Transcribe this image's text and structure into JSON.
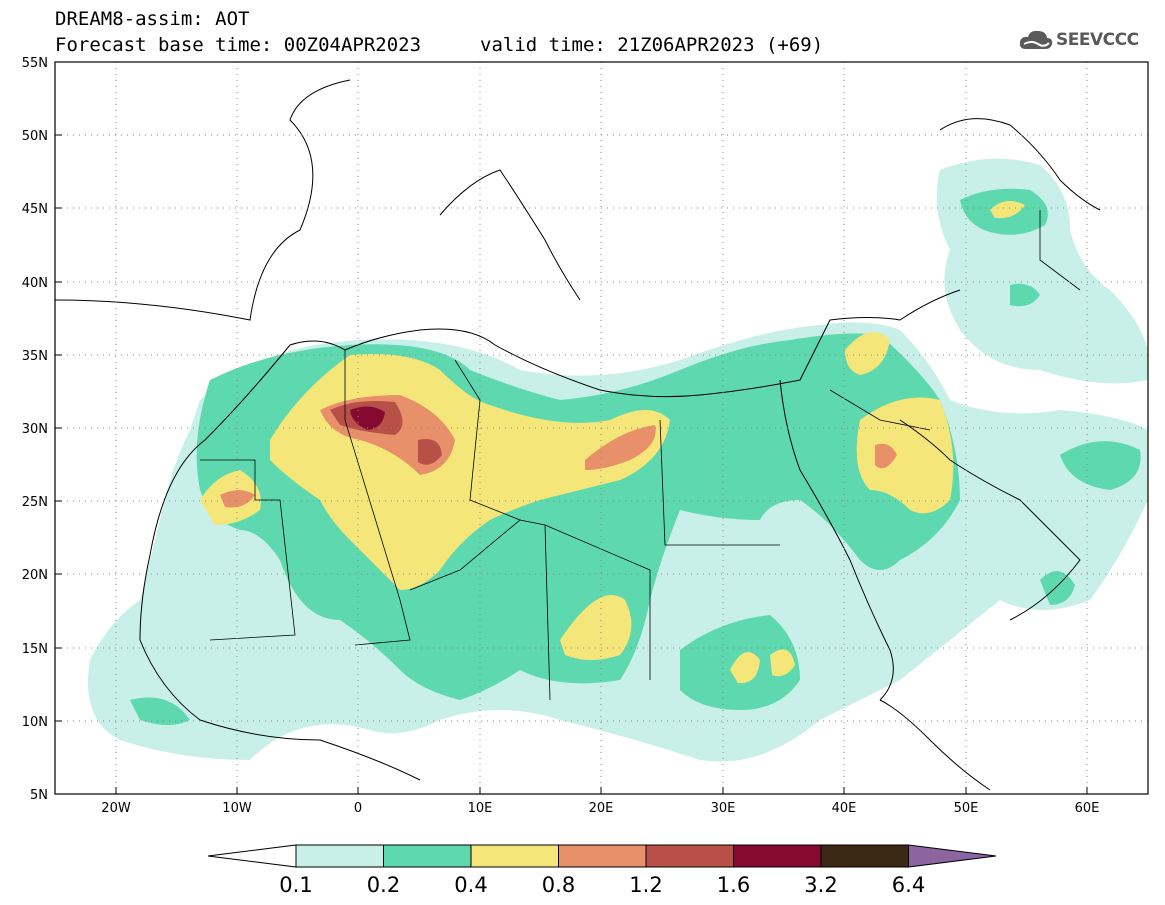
{
  "header": {
    "title_line1": "DREAM8-assim: AOT",
    "title_line2": "Forecast base time: 00Z04APR2023",
    "valid_time": "valid time: 21Z06APR2023 (+69)",
    "logo_text": "SEEVCCC",
    "logo_icon": "cloud-icon"
  },
  "map": {
    "lat_labels": [
      "55N",
      "50N",
      "45N",
      "40N",
      "35N",
      "30N",
      "25N",
      "20N",
      "15N",
      "10N",
      "5N"
    ],
    "lon_labels": [
      "20W",
      "10W",
      "0",
      "10E",
      "20E",
      "30E",
      "40E",
      "50E",
      "60E"
    ],
    "lat_values": [
      55,
      50,
      45,
      40,
      35,
      30,
      25,
      20,
      15,
      10,
      5
    ],
    "lon_values": [
      -20,
      -10,
      0,
      10,
      20,
      30,
      40,
      50,
      60
    ],
    "lon_range": [
      -25,
      65
    ],
    "lat_range": [
      5,
      55
    ]
  },
  "colorbar": {
    "levels": [
      "0.1",
      "0.2",
      "0.4",
      "0.8",
      "1.2",
      "1.6",
      "3.2",
      "6.4"
    ],
    "colors": [
      "#c8f0e8",
      "#5ed8ae",
      "#f5e67a",
      "#e8906a",
      "#b85048",
      "#850a32",
      "#3c2814"
    ],
    "under_color": "#ffffff",
    "over_color": "#8c64a0"
  },
  "colors": {
    "c1": "#c8f0e8",
    "c2": "#5ed8ae",
    "c3": "#f5e67a",
    "c4": "#e8906a",
    "c5": "#b85048",
    "c6": "#850a32"
  }
}
